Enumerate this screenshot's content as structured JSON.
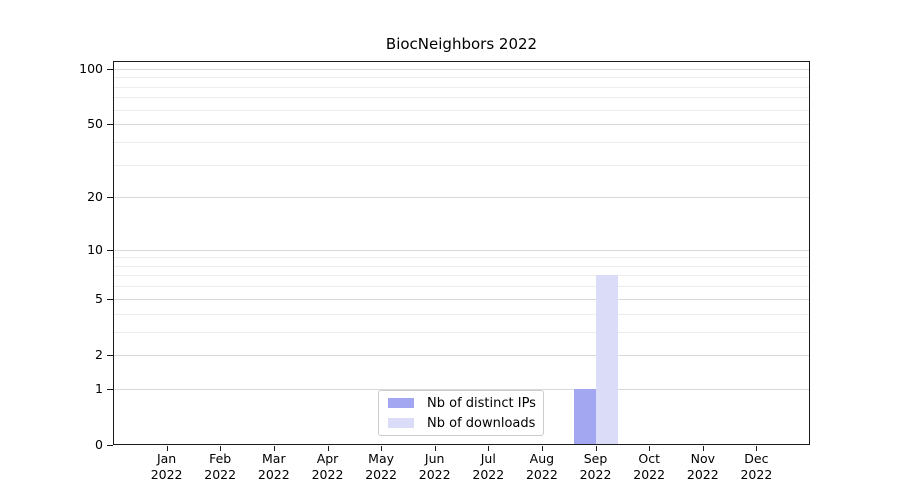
{
  "title": "BiocNeighbors 2022",
  "chart_data": {
    "type": "bar",
    "title": "BiocNeighbors 2022",
    "xlabel": "",
    "ylabel": "",
    "yscale": "log1p",
    "ylim": [
      0,
      110
    ],
    "ytick_values": [
      0,
      1,
      2,
      5,
      10,
      20,
      50,
      100
    ],
    "ytick_labels": [
      "0",
      "1",
      "2",
      "5",
      "10",
      "20",
      "50",
      "100"
    ],
    "minor_ytick_values": [
      3,
      4,
      6,
      7,
      8,
      9,
      30,
      40,
      60,
      70,
      80,
      90
    ],
    "grid": "horizontal",
    "categories": [
      {
        "month": "Jan",
        "year": "2022"
      },
      {
        "month": "Feb",
        "year": "2022"
      },
      {
        "month": "Mar",
        "year": "2022"
      },
      {
        "month": "Apr",
        "year": "2022"
      },
      {
        "month": "May",
        "year": "2022"
      },
      {
        "month": "Jun",
        "year": "2022"
      },
      {
        "month": "Jul",
        "year": "2022"
      },
      {
        "month": "Aug",
        "year": "2022"
      },
      {
        "month": "Sep",
        "year": "2022"
      },
      {
        "month": "Oct",
        "year": "2022"
      },
      {
        "month": "Nov",
        "year": "2022"
      },
      {
        "month": "Dec",
        "year": "2022"
      }
    ],
    "series": [
      {
        "name": "Nb of distinct IPs",
        "color": "#a3a6f0",
        "values": [
          0,
          0,
          0,
          0,
          0,
          0,
          0,
          0,
          1,
          0,
          0,
          0
        ]
      },
      {
        "name": "Nb of downloads",
        "color": "#dadcf8",
        "values": [
          0,
          0,
          0,
          0,
          0,
          0,
          0,
          0,
          7,
          0,
          0,
          0
        ]
      }
    ],
    "legend_position": "lower center",
    "colors": {
      "axis": "#1a1a1a",
      "major_grid": "#d9d9d9",
      "minor_grid": "#ededed",
      "legend_border": "#cccccc",
      "background": "#ffffff"
    }
  }
}
